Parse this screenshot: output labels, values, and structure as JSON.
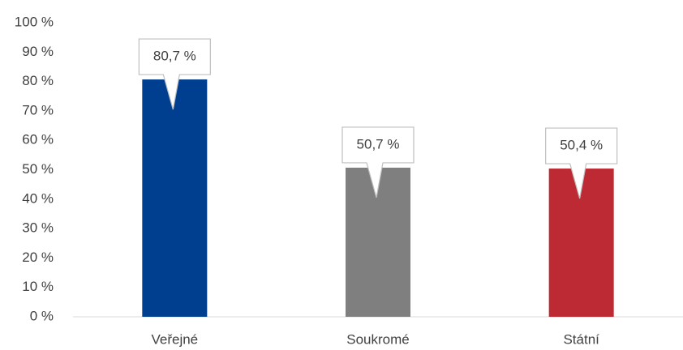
{
  "chart_data": {
    "type": "bar",
    "categories": [
      "Veřejné",
      "Soukromé",
      "Státní"
    ],
    "values": [
      80.7,
      50.7,
      50.4
    ],
    "value_labels": [
      "80,7 %",
      "50,7 %",
      "50,4 %"
    ],
    "colors": [
      "#003f8f",
      "#7f7f7f",
      "#be2a33"
    ],
    "ylim": [
      0,
      100
    ],
    "yticks": [
      {
        "value": 0,
        "label": "0 %"
      },
      {
        "value": 10,
        "label": "10 %"
      },
      {
        "value": 20,
        "label": "20 %"
      },
      {
        "value": 30,
        "label": "30 %"
      },
      {
        "value": 40,
        "label": "40 %"
      },
      {
        "value": 50,
        "label": "50 %"
      },
      {
        "value": 60,
        "label": "60 %"
      },
      {
        "value": 70,
        "label": "70 %"
      },
      {
        "value": 80,
        "label": "80 %"
      },
      {
        "value": 90,
        "label": "90 %"
      },
      {
        "value": 100,
        "label": "100 %"
      }
    ],
    "grid": false
  }
}
